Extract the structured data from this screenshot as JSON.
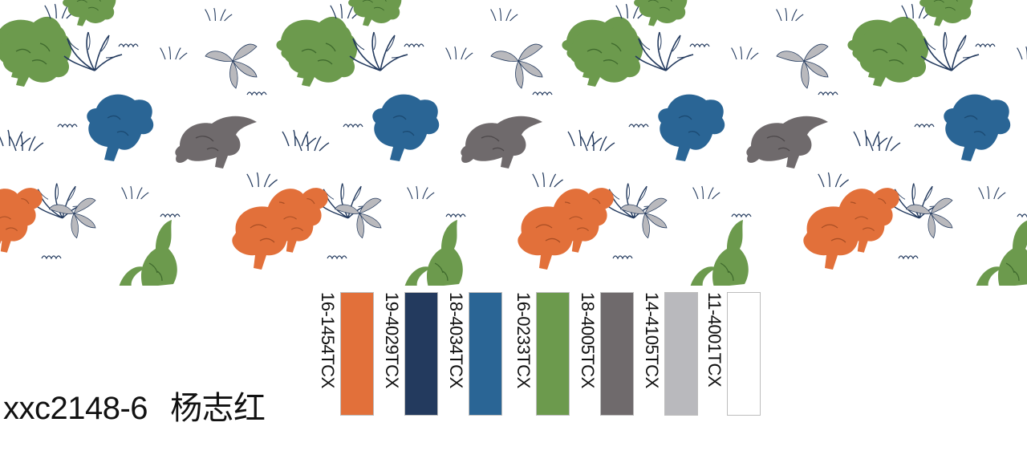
{
  "pattern": {
    "dinosaur_icons": [
      "triceratops-icon",
      "pachycephalosaurus-icon",
      "parasaurolophus-icon",
      "protoceratops-icon",
      "raptor-icon"
    ],
    "plant_icons": [
      "fern-icon",
      "leaf-icon",
      "grass-icon"
    ],
    "colors": {
      "orange": "#E2703A",
      "navy": "#233A5E",
      "blue": "#2A6595",
      "green": "#6C9A4D",
      "gray": "#6F6A6C",
      "light_gray": "#B9B9BD",
      "white": "#FFFFFF"
    }
  },
  "design": {
    "code": "xxc2148-6",
    "author": "杨志红"
  },
  "swatches": [
    {
      "code": "16-1454TCX",
      "color": "#E2703A"
    },
    {
      "code": "19-4029TCX",
      "color": "#233A5E"
    },
    {
      "code": "18-4034TCX",
      "color": "#2A6595"
    },
    {
      "code": "16-0233TCX",
      "color": "#6C9A4D"
    },
    {
      "code": "18-4005TCX",
      "color": "#6F6A6C"
    },
    {
      "code": "14-4105TCX",
      "color": "#B9B9BD"
    },
    {
      "code": "11-4001TCX",
      "color": "#FFFFFF"
    }
  ]
}
